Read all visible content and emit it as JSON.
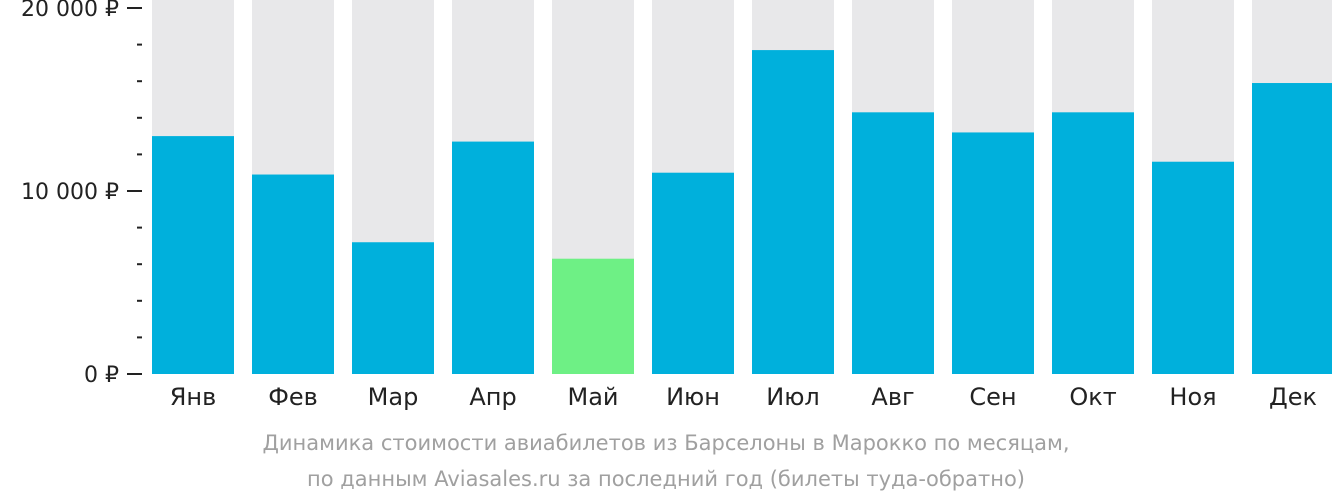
{
  "chart_data": {
    "type": "bar",
    "categories": [
      "Янв",
      "Фев",
      "Мар",
      "Апр",
      "Май",
      "Июн",
      "Июл",
      "Авг",
      "Сен",
      "Окт",
      "Ноя",
      "Дек"
    ],
    "values": [
      13000,
      10900,
      7200,
      12700,
      6300,
      11000,
      17700,
      14300,
      13200,
      14300,
      11600,
      15900
    ],
    "highlight_index": 4,
    "ylim": [
      0,
      20000
    ],
    "yticks": [
      {
        "value": 0,
        "label": "0 ₽"
      },
      {
        "value": 10000,
        "label": "10 000 ₽"
      },
      {
        "value": 20000,
        "label": "20 000 ₽"
      }
    ],
    "minor_tick_step": 2000,
    "grid": false,
    "colors": {
      "bar": "#00b0dc",
      "highlight": "#6ef085",
      "track": "#e8e8ea"
    }
  },
  "caption": {
    "line1": "Динамика стоимости авиабилетов из Барселоны в Марокко по месяцам,",
    "line2": "по данным Aviasales.ru за последний год (билеты туда-обратно)"
  }
}
